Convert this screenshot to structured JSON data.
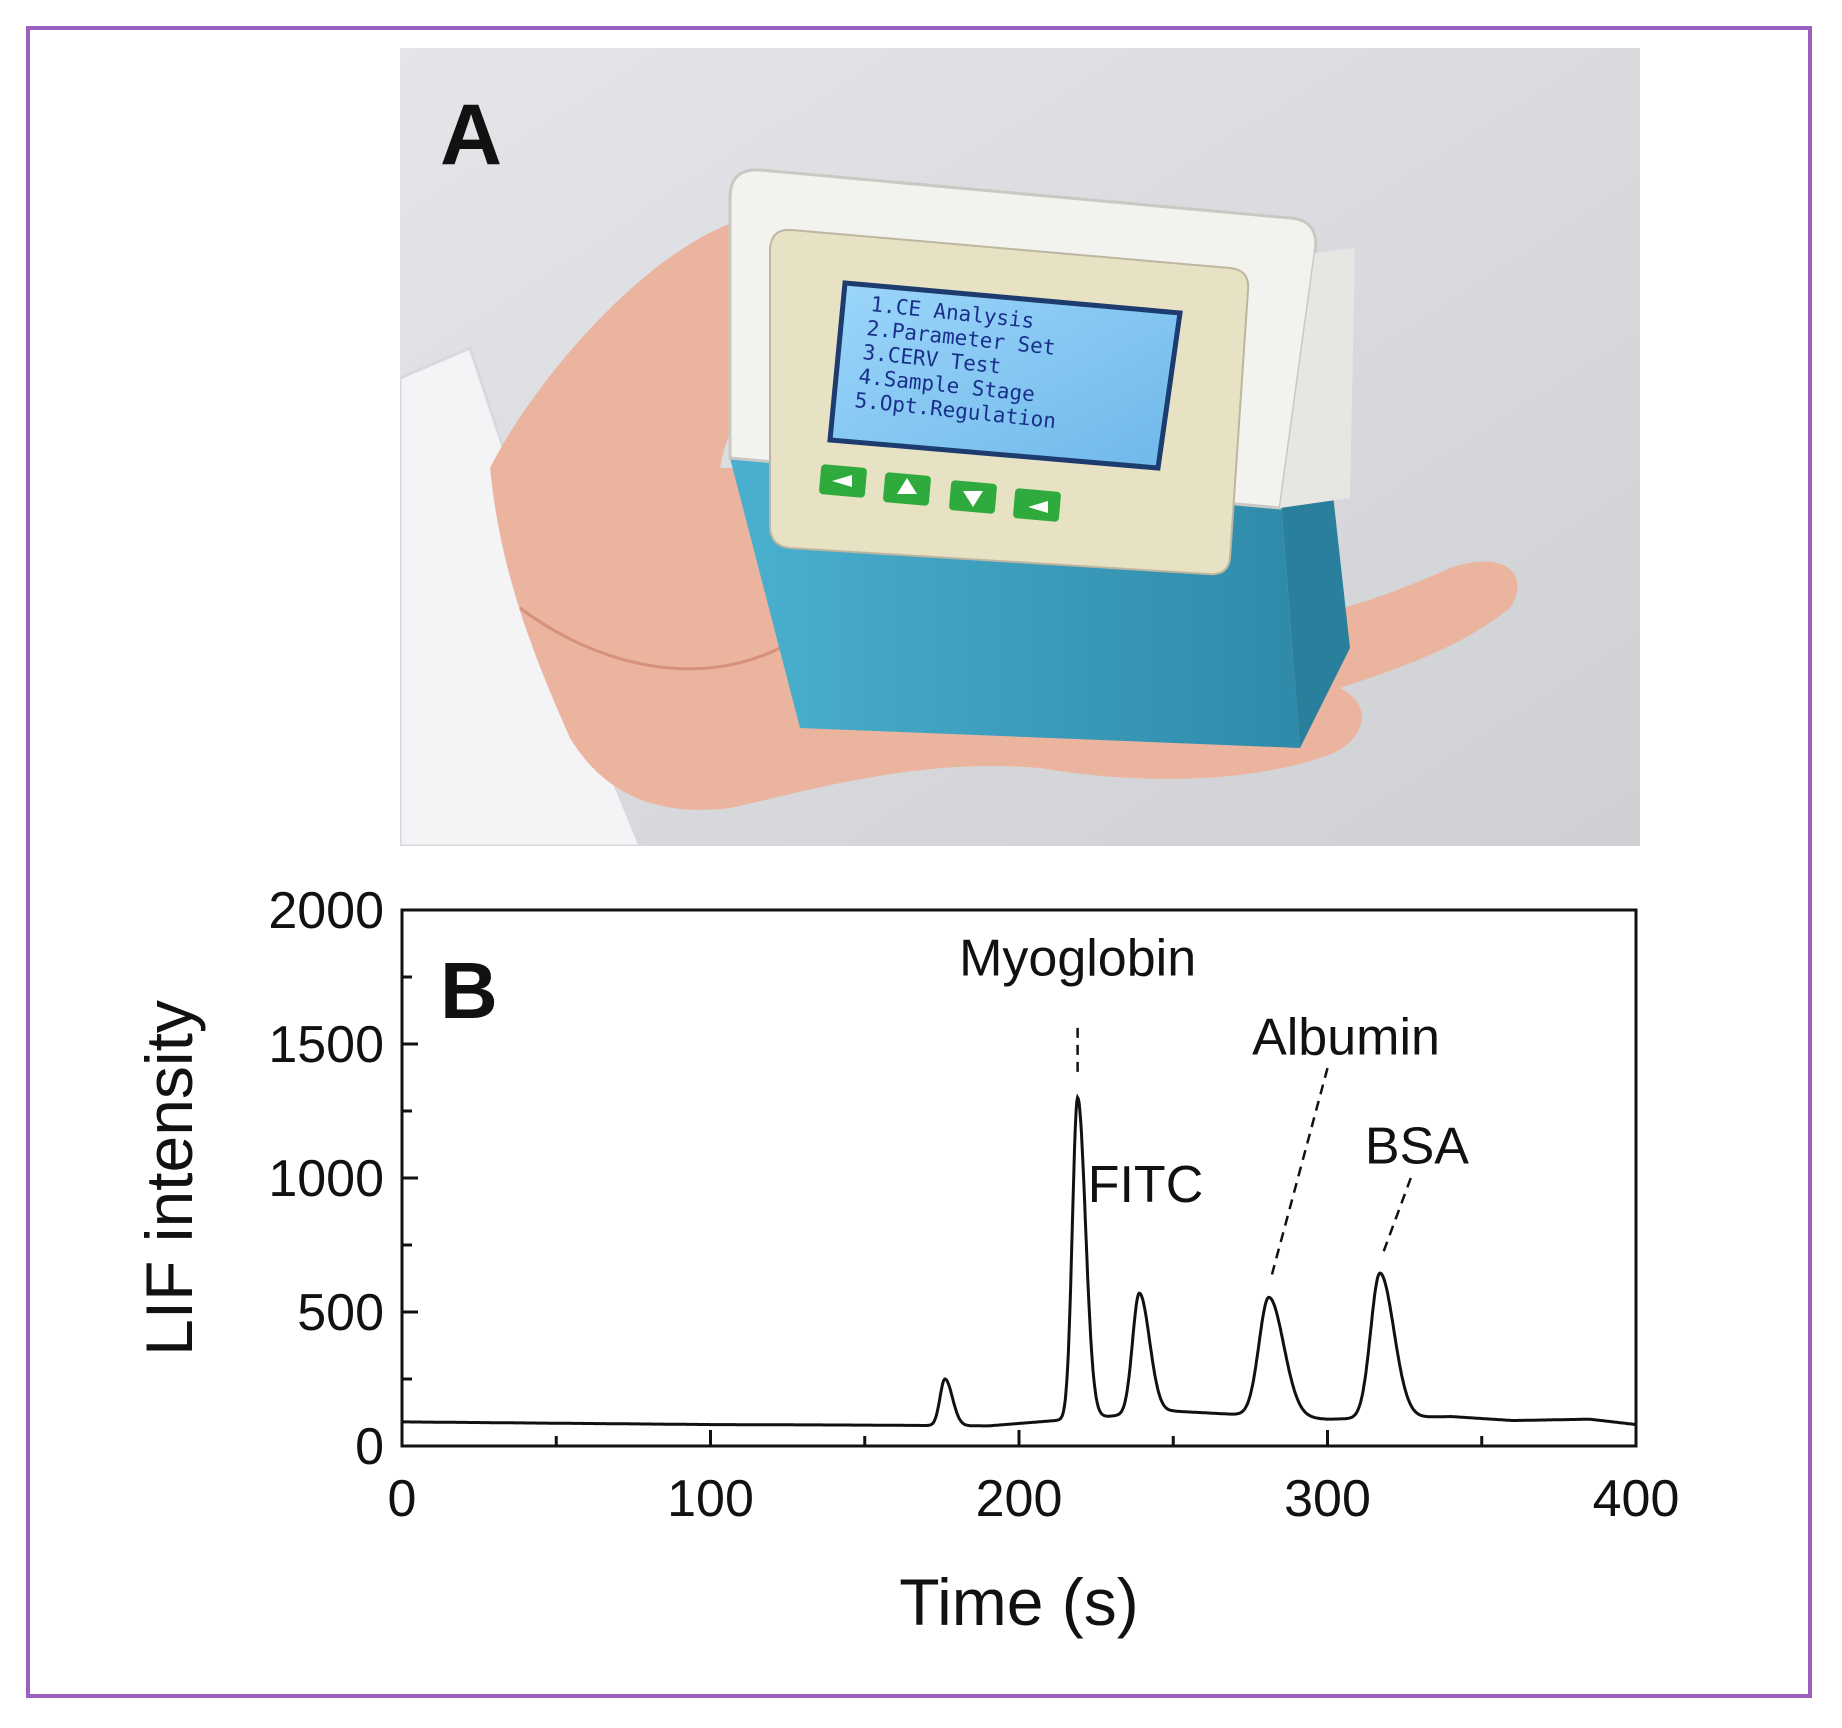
{
  "figure": {
    "panel_a": {
      "letter": "A",
      "device_screen_lines": [
        "1.CE Analysis",
        "2.Parameter Set",
        "3.CERV Test",
        "4.Sample Stage",
        "5.Opt.Regulation"
      ],
      "colors": {
        "device_top": "#f2f2ee",
        "device_body": "#3a9bbb",
        "screen": "#7fc4f0",
        "buttons": "#2faa3c",
        "skin": "#eab49e",
        "sleeve": "#f4f4f6"
      }
    },
    "panel_b": {
      "letter": "B"
    }
  },
  "chart_data": {
    "type": "line",
    "xlabel": "Time (s)",
    "ylabel": "LIF intensity",
    "xlim": [
      0,
      400
    ],
    "ylim": [
      0,
      2000
    ],
    "xticks": [
      "0",
      "100",
      "200",
      "300",
      "400"
    ],
    "yticks": [
      "0",
      "500",
      "1000",
      "1500",
      "2000"
    ],
    "line_color": "#111111",
    "baseline": [
      [
        0,
        90
      ],
      [
        50,
        85
      ],
      [
        100,
        80
      ],
      [
        150,
        78
      ],
      [
        190,
        75
      ],
      [
        250,
        130
      ],
      [
        300,
        100
      ],
      [
        340,
        110
      ],
      [
        360,
        95
      ],
      [
        385,
        100
      ],
      [
        400,
        80
      ]
    ],
    "peaks": [
      {
        "label": "",
        "time": 176,
        "height": 250,
        "width": 1.6
      },
      {
        "label": "Myoglobin",
        "time": 219,
        "height": 1300,
        "width": 1.7
      },
      {
        "label": "FITC",
        "time": 239,
        "height": 570,
        "width": 2.2
      },
      {
        "label": "Albumin",
        "time": 281,
        "height": 555,
        "width": 3.2
      },
      {
        "label": "BSA",
        "time": 317,
        "height": 645,
        "width": 3.0
      }
    ],
    "grid": false,
    "legend": "none"
  }
}
